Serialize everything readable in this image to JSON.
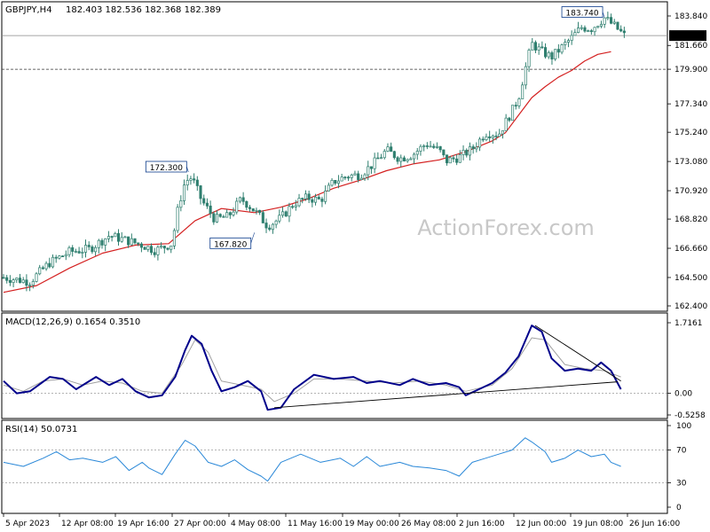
{
  "header": {
    "symbol": "GBPJPY,H4",
    "ohlc": "182.403 182.536 182.368 182.389",
    "macd_label": "MACD(12,26,9) 0.1654 0.3510",
    "rsi_label": "RSI(14) 50.0731"
  },
  "watermark": "ActionForex.com",
  "colors": {
    "candle": "#2f7f6f",
    "ma": "#d42020",
    "macd": "#00008b",
    "signal": "#a0a0a0",
    "rsi": "#2a88d8",
    "frame": "#000000",
    "grid_level": "#808080"
  },
  "chart_data": [
    {
      "type": "candlestick",
      "title": "GBPJPY,H4",
      "y_ticks": [
        "183.840",
        "181.660",
        "179.900",
        "177.340",
        "175.240",
        "173.080",
        "170.920",
        "168.820",
        "166.660",
        "164.500",
        "162.400"
      ],
      "ylim": [
        162.4,
        183.84
      ],
      "current_price": "182.389",
      "level_line": "179.900",
      "annotations": [
        {
          "label": "172.300",
          "t": 0.28,
          "value": 172.3
        },
        {
          "label": "167.820",
          "t": 0.38,
          "value": 167.82
        },
        {
          "label": "183.740",
          "t": 0.91,
          "value": 183.74
        }
      ],
      "price_path": [
        [
          0.0,
          164.5
        ],
        [
          0.04,
          164.2
        ],
        [
          0.07,
          165.6
        ],
        [
          0.1,
          166.4
        ],
        [
          0.13,
          166.6
        ],
        [
          0.16,
          167.6
        ],
        [
          0.19,
          167.2
        ],
        [
          0.21,
          166.9
        ],
        [
          0.23,
          166.5
        ],
        [
          0.255,
          167.0
        ],
        [
          0.265,
          169.8
        ],
        [
          0.275,
          171.6
        ],
        [
          0.285,
          171.9
        ],
        [
          0.3,
          170.2
        ],
        [
          0.32,
          168.8
        ],
        [
          0.34,
          169.0
        ],
        [
          0.36,
          170.3
        ],
        [
          0.37,
          169.9
        ],
        [
          0.385,
          169.2
        ],
        [
          0.4,
          168.3
        ],
        [
          0.42,
          168.9
        ],
        [
          0.44,
          170.0
        ],
        [
          0.46,
          170.4
        ],
        [
          0.48,
          170.2
        ],
        [
          0.5,
          171.6
        ],
        [
          0.52,
          172.0
        ],
        [
          0.54,
          172.1
        ],
        [
          0.56,
          172.9
        ],
        [
          0.58,
          173.9
        ],
        [
          0.6,
          173.3
        ],
        [
          0.62,
          173.6
        ],
        [
          0.64,
          174.4
        ],
        [
          0.66,
          173.9
        ],
        [
          0.67,
          173.1
        ],
        [
          0.69,
          173.4
        ],
        [
          0.71,
          174.0
        ],
        [
          0.73,
          175.2
        ],
        [
          0.75,
          175.1
        ],
        [
          0.77,
          176.8
        ],
        [
          0.78,
          177.8
        ],
        [
          0.79,
          179.9
        ],
        [
          0.8,
          181.8
        ],
        [
          0.815,
          181.2
        ],
        [
          0.83,
          180.8
        ],
        [
          0.845,
          181.5
        ],
        [
          0.86,
          182.2
        ],
        [
          0.875,
          183.0
        ],
        [
          0.89,
          182.9
        ],
        [
          0.91,
          183.7
        ],
        [
          0.925,
          183.1
        ],
        [
          0.94,
          182.4
        ]
      ],
      "ma_path": [
        [
          0.0,
          163.4
        ],
        [
          0.05,
          163.9
        ],
        [
          0.1,
          165.2
        ],
        [
          0.15,
          166.3
        ],
        [
          0.2,
          166.9
        ],
        [
          0.25,
          167.0
        ],
        [
          0.29,
          168.7
        ],
        [
          0.33,
          169.6
        ],
        [
          0.38,
          169.3
        ],
        [
          0.42,
          169.7
        ],
        [
          0.46,
          170.3
        ],
        [
          0.5,
          171.1
        ],
        [
          0.54,
          171.7
        ],
        [
          0.58,
          172.4
        ],
        [
          0.62,
          172.9
        ],
        [
          0.66,
          173.2
        ],
        [
          0.7,
          173.8
        ],
        [
          0.74,
          174.6
        ],
        [
          0.76,
          175.2
        ],
        [
          0.78,
          176.5
        ],
        [
          0.8,
          177.8
        ],
        [
          0.82,
          178.6
        ],
        [
          0.84,
          179.3
        ],
        [
          0.86,
          179.8
        ],
        [
          0.88,
          180.5
        ],
        [
          0.9,
          181.0
        ],
        [
          0.92,
          181.2
        ]
      ]
    },
    {
      "type": "line",
      "title": "MACD(12,26,9) 0.1654 0.3510",
      "y_ticks": [
        "1.7161",
        "0.00",
        "-0.5258"
      ],
      "ylim": [
        -0.5258,
        1.7161
      ],
      "series": [
        {
          "name": "",
          "points": [
            [
              0.0,
              0.3
            ],
            [
              0.02,
              0.0
            ],
            [
              0.04,
              0.05
            ],
            [
              0.07,
              0.4
            ],
            [
              0.09,
              0.35
            ],
            [
              0.11,
              0.1
            ],
            [
              0.14,
              0.4
            ],
            [
              0.16,
              0.2
            ],
            [
              0.18,
              0.35
            ],
            [
              0.2,
              0.05
            ],
            [
              0.22,
              -0.1
            ],
            [
              0.24,
              -0.05
            ],
            [
              0.26,
              0.4
            ],
            [
              0.275,
              1.05
            ],
            [
              0.285,
              1.4
            ],
            [
              0.3,
              1.2
            ],
            [
              0.315,
              0.55
            ],
            [
              0.33,
              0.05
            ],
            [
              0.35,
              0.15
            ],
            [
              0.37,
              0.3
            ],
            [
              0.39,
              0.05
            ],
            [
              0.4,
              -0.4
            ],
            [
              0.42,
              -0.35
            ],
            [
              0.44,
              0.1
            ],
            [
              0.47,
              0.45
            ],
            [
              0.5,
              0.35
            ],
            [
              0.53,
              0.4
            ],
            [
              0.55,
              0.25
            ],
            [
              0.57,
              0.3
            ],
            [
              0.6,
              0.2
            ],
            [
              0.62,
              0.35
            ],
            [
              0.645,
              0.2
            ],
            [
              0.67,
              0.25
            ],
            [
              0.69,
              0.15
            ],
            [
              0.7,
              -0.05
            ],
            [
              0.72,
              0.1
            ],
            [
              0.74,
              0.25
            ],
            [
              0.76,
              0.5
            ],
            [
              0.78,
              0.9
            ],
            [
              0.8,
              1.65
            ],
            [
              0.815,
              1.5
            ],
            [
              0.83,
              0.85
            ],
            [
              0.85,
              0.55
            ],
            [
              0.87,
              0.6
            ],
            [
              0.89,
              0.55
            ],
            [
              0.905,
              0.75
            ],
            [
              0.92,
              0.55
            ],
            [
              0.935,
              0.1
            ]
          ]
        },
        {
          "name": "",
          "points": [
            [
              0.0,
              0.2
            ],
            [
              0.03,
              0.05
            ],
            [
              0.06,
              0.3
            ],
            [
              0.09,
              0.35
            ],
            [
              0.12,
              0.2
            ],
            [
              0.15,
              0.3
            ],
            [
              0.18,
              0.25
            ],
            [
              0.21,
              0.05
            ],
            [
              0.24,
              0.0
            ],
            [
              0.27,
              0.7
            ],
            [
              0.29,
              1.3
            ],
            [
              0.31,
              1.0
            ],
            [
              0.33,
              0.3
            ],
            [
              0.36,
              0.2
            ],
            [
              0.39,
              0.1
            ],
            [
              0.41,
              -0.2
            ],
            [
              0.44,
              0.0
            ],
            [
              0.47,
              0.35
            ],
            [
              0.51,
              0.35
            ],
            [
              0.55,
              0.3
            ],
            [
              0.59,
              0.25
            ],
            [
              0.63,
              0.3
            ],
            [
              0.67,
              0.2
            ],
            [
              0.7,
              0.05
            ],
            [
              0.74,
              0.2
            ],
            [
              0.77,
              0.6
            ],
            [
              0.8,
              1.35
            ],
            [
              0.82,
              1.3
            ],
            [
              0.85,
              0.7
            ],
            [
              0.88,
              0.6
            ],
            [
              0.91,
              0.55
            ],
            [
              0.935,
              0.4
            ]
          ]
        }
      ],
      "trendlines": [
        {
          "from": [
            0.41,
            -0.35
          ],
          "to": [
            0.93,
            0.28
          ]
        },
        {
          "from": [
            0.805,
            1.65
          ],
          "to": [
            0.935,
            0.3
          ]
        }
      ]
    },
    {
      "type": "line",
      "title": "RSI(14) 50.0731",
      "y_ticks": [
        "100",
        "70",
        "30",
        "0"
      ],
      "ylim": [
        0,
        100
      ],
      "levels": [
        70,
        30
      ],
      "series": [
        {
          "name": "",
          "points": [
            [
              0.0,
              55
            ],
            [
              0.03,
              50
            ],
            [
              0.06,
              60
            ],
            [
              0.08,
              68
            ],
            [
              0.1,
              58
            ],
            [
              0.12,
              60
            ],
            [
              0.15,
              55
            ],
            [
              0.17,
              62
            ],
            [
              0.19,
              45
            ],
            [
              0.21,
              55
            ],
            [
              0.22,
              48
            ],
            [
              0.24,
              40
            ],
            [
              0.26,
              65
            ],
            [
              0.275,
              82
            ],
            [
              0.29,
              75
            ],
            [
              0.31,
              55
            ],
            [
              0.33,
              50
            ],
            [
              0.35,
              58
            ],
            [
              0.37,
              46
            ],
            [
              0.39,
              38
            ],
            [
              0.4,
              32
            ],
            [
              0.42,
              55
            ],
            [
              0.45,
              65
            ],
            [
              0.48,
              55
            ],
            [
              0.51,
              60
            ],
            [
              0.53,
              50
            ],
            [
              0.55,
              62
            ],
            [
              0.57,
              50
            ],
            [
              0.6,
              55
            ],
            [
              0.62,
              50
            ],
            [
              0.645,
              48
            ],
            [
              0.67,
              45
            ],
            [
              0.69,
              38
            ],
            [
              0.71,
              55
            ],
            [
              0.73,
              60
            ],
            [
              0.75,
              65
            ],
            [
              0.77,
              70
            ],
            [
              0.79,
              85
            ],
            [
              0.8,
              80
            ],
            [
              0.82,
              68
            ],
            [
              0.83,
              55
            ],
            [
              0.85,
              60
            ],
            [
              0.87,
              70
            ],
            [
              0.89,
              62
            ],
            [
              0.91,
              65
            ],
            [
              0.92,
              55
            ],
            [
              0.935,
              50
            ]
          ]
        }
      ]
    }
  ],
  "x_ticks": [
    "5 Apr 2023",
    "12 Apr 08:00",
    "19 Apr 16:00",
    "27 Apr 00:00",
    "4 May 08:00",
    "11 May 16:00",
    "19 May 00:00",
    "26 May 08:00",
    "2 Jun 16:00",
    "12 Jun 00:00",
    "19 Jun 08:00",
    "26 Jun 16:00"
  ]
}
